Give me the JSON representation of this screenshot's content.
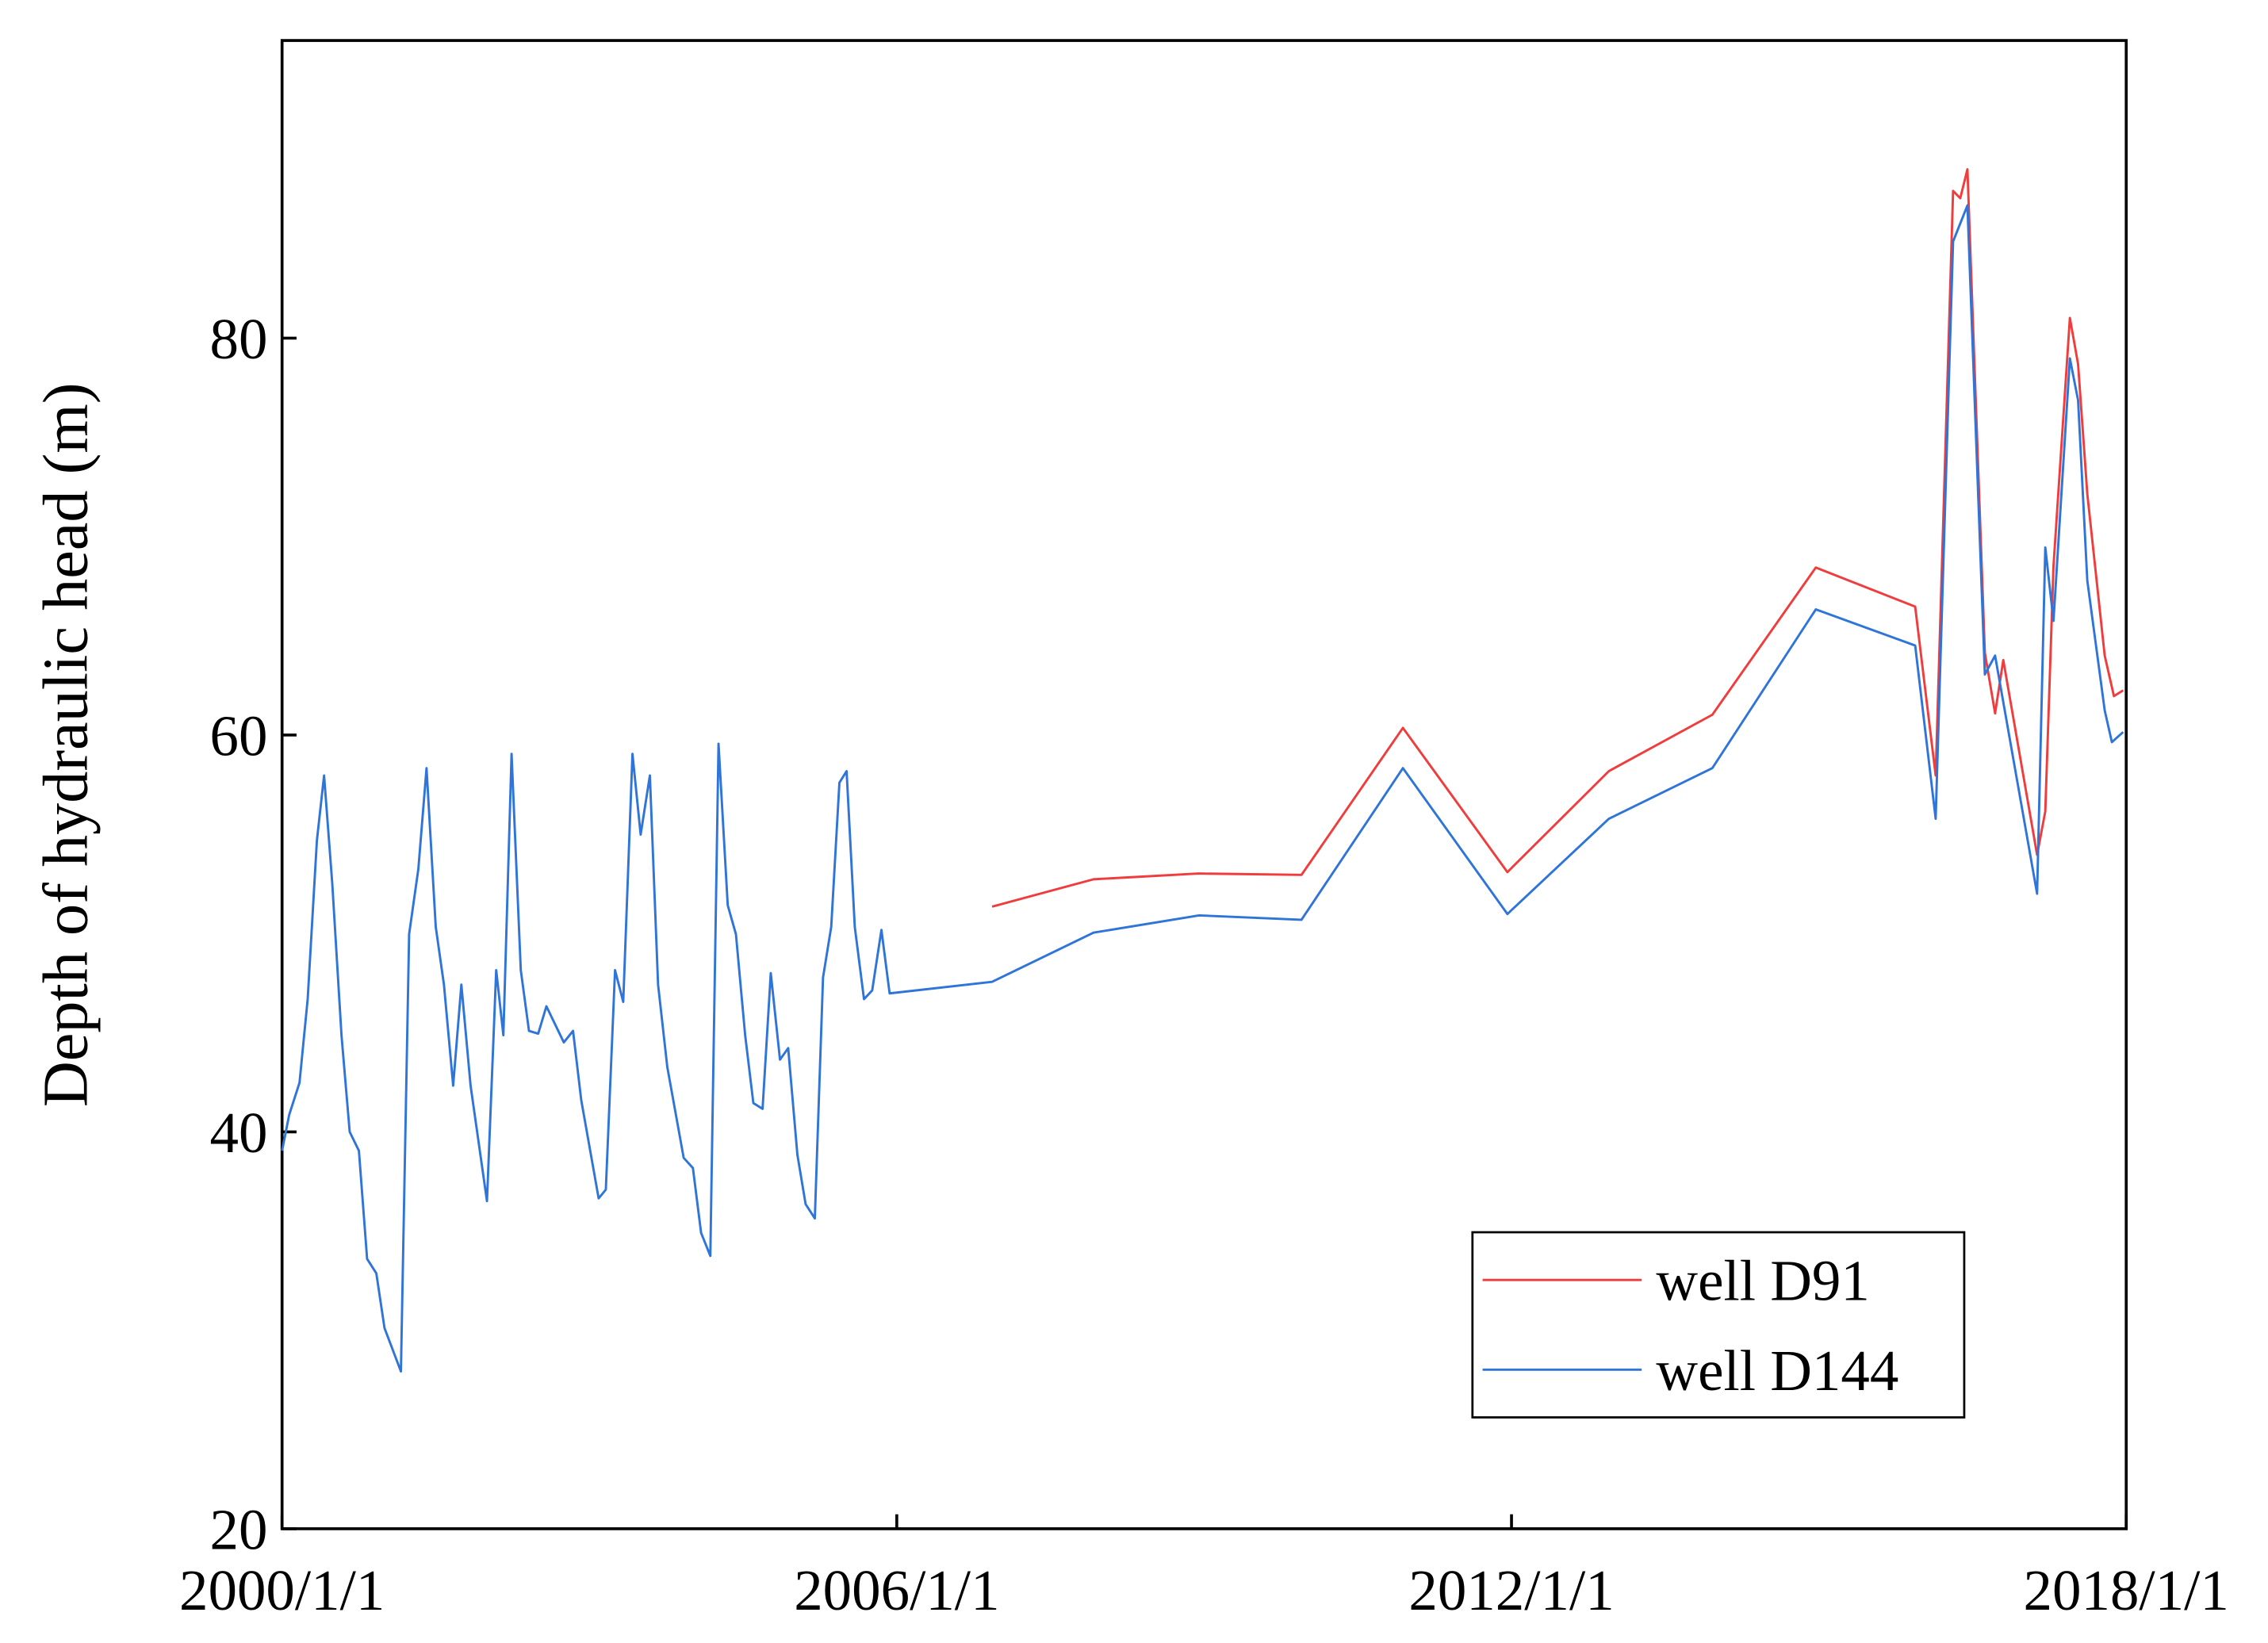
{
  "chart_data": {
    "type": "line",
    "ylabel": "Depth of hydraulic head (m)",
    "xlim": [
      2000,
      2018
    ],
    "xticks": [
      {
        "value": 2000,
        "label": "2000/1/1"
      },
      {
        "value": 2006,
        "label": "2006/1/1"
      },
      {
        "value": 2012,
        "label": "2012/1/1"
      },
      {
        "value": 2018,
        "label": "2018/1/1"
      }
    ],
    "ylim": [
      20,
      95
    ],
    "yticks": [
      20,
      40,
      60,
      80
    ],
    "legend": "lower right",
    "grid": false,
    "series": [
      {
        "name": "well D91",
        "color": "#f03c3c",
        "x": [
          2006.93,
          2007.92,
          2008.95,
          2009.95,
          2010.94,
          2011.96,
          2012.95,
          2013.96,
          2014.97,
          2015.94,
          2016.14,
          2016.31,
          2016.38,
          2016.45,
          2016.62,
          2016.72,
          2016.8,
          2017.13,
          2017.21,
          2017.29,
          2017.45,
          2017.53,
          2017.62,
          2017.79,
          2017.88,
          2017.97
        ],
        "values": [
          51.35,
          52.73,
          53.02,
          52.95,
          60.36,
          53.09,
          58.18,
          61.02,
          68.44,
          66.47,
          57.96,
          87.42,
          87.05,
          88.51,
          64.15,
          61.09,
          63.78,
          53.96,
          56.15,
          68.51,
          81.02,
          78.69,
          72.15,
          64.0,
          61.96,
          62.25
        ]
      },
      {
        "name": "well D144",
        "color": "#2f74d8",
        "x": [
          2000.0,
          2000.07,
          2000.17,
          2000.25,
          2000.34,
          2000.41,
          2000.49,
          2000.58,
          2000.66,
          2000.75,
          2000.83,
          2000.92,
          2001.0,
          2001.16,
          2001.24,
          2001.33,
          2001.41,
          2001.5,
          2001.58,
          2001.67,
          2001.75,
          2001.84,
          2002.0,
          2002.09,
          2002.16,
          2002.24,
          2002.33,
          2002.41,
          2002.5,
          2002.58,
          2002.75,
          2002.84,
          2002.92,
          2003.09,
          2003.16,
          2003.25,
          2003.33,
          2003.42,
          2003.5,
          2003.59,
          2003.67,
          2003.76,
          2003.92,
          2004.01,
          2004.09,
          2004.18,
          2004.26,
          2004.35,
          2004.43,
          2004.52,
          2004.6,
          2004.69,
          2004.77,
          2004.86,
          2004.94,
          2005.03,
          2005.11,
          2005.2,
          2005.28,
          2005.36,
          2005.44,
          2005.51,
          2005.59,
          2005.68,
          2005.76,
          2005.85,
          2005.93,
          2006.93,
          2007.92,
          2008.95,
          2009.95,
          2010.94,
          2011.96,
          2012.95,
          2013.96,
          2014.97,
          2015.94,
          2016.14,
          2016.31,
          2016.45,
          2016.62,
          2016.72,
          2017.13,
          2017.21,
          2017.29,
          2017.45,
          2017.53,
          2017.62,
          2017.79,
          2017.86,
          2017.97
        ],
        "values": [
          39.05,
          40.87,
          42.47,
          46.69,
          54.69,
          57.96,
          52.51,
          44.87,
          40.0,
          39.05,
          33.6,
          32.87,
          30.11,
          27.93,
          49.96,
          53.24,
          58.33,
          50.33,
          47.42,
          42.33,
          47.42,
          42.33,
          36.51,
          48.15,
          44.87,
          59.05,
          48.15,
          45.09,
          44.95,
          46.33,
          44.51,
          45.09,
          41.6,
          36.65,
          37.09,
          48.15,
          46.55,
          59.05,
          54.98,
          57.96,
          47.42,
          43.27,
          38.69,
          38.18,
          34.91,
          33.75,
          59.56,
          51.42,
          49.96,
          44.87,
          41.45,
          41.16,
          48.0,
          43.64,
          44.22,
          38.84,
          36.36,
          35.64,
          47.78,
          50.33,
          57.6,
          58.18,
          50.33,
          46.69,
          47.13,
          50.18,
          46.98,
          47.56,
          50.04,
          50.91,
          50.69,
          58.33,
          50.98,
          55.78,
          58.33,
          66.33,
          64.51,
          55.78,
          84.87,
          86.69,
          63.05,
          64.0,
          52.0,
          69.45,
          65.75,
          78.98,
          76.87,
          67.78,
          61.24,
          59.64,
          60.15
        ]
      }
    ]
  }
}
